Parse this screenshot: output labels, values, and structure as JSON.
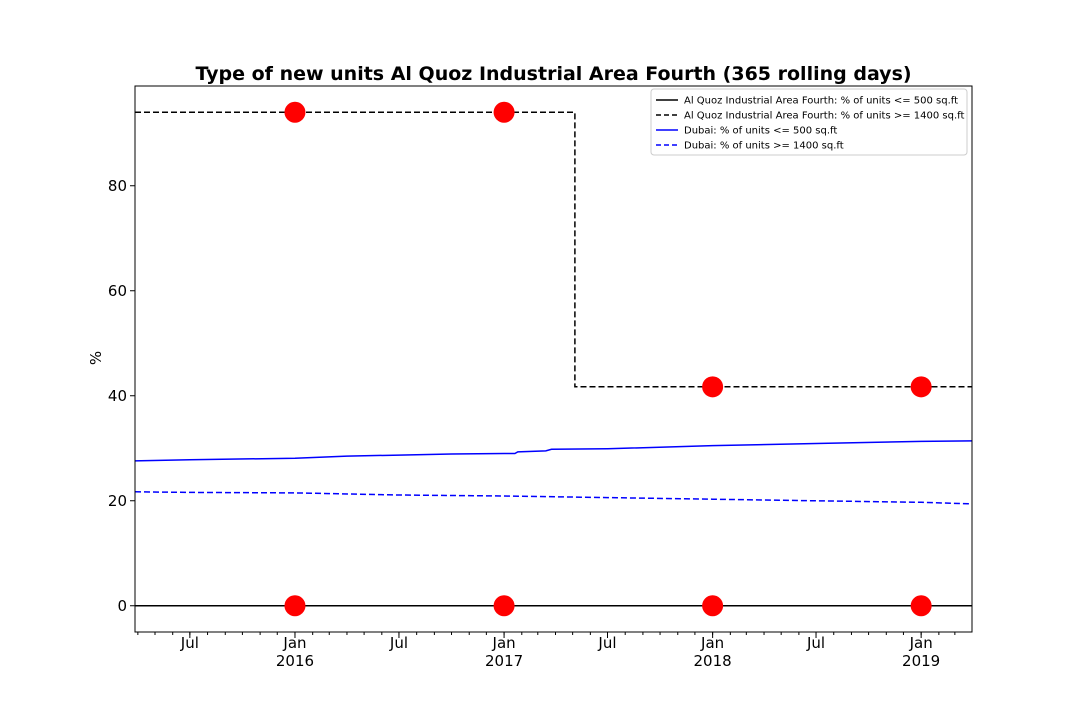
{
  "chart_data": {
    "type": "line",
    "title": "Type of new units Al Quoz Industrial Area Fourth (365 rolling days)",
    "xlabel": "",
    "ylabel": "%",
    "xlim": [
      "2015-03-27",
      "2019-03-31"
    ],
    "ylim": [
      -5,
      99
    ],
    "y_ticks": [
      0,
      20,
      40,
      60,
      80
    ],
    "x_ticks": [
      {
        "date": "2015-07-01",
        "label": "Jul",
        "sublabel": ""
      },
      {
        "date": "2016-01-01",
        "label": "Jan",
        "sublabel": "2016"
      },
      {
        "date": "2016-07-01",
        "label": "Jul",
        "sublabel": ""
      },
      {
        "date": "2017-01-01",
        "label": "Jan",
        "sublabel": "2017"
      },
      {
        "date": "2017-07-01",
        "label": "Jul",
        "sublabel": ""
      },
      {
        "date": "2018-01-01",
        "label": "Jan",
        "sublabel": "2018"
      },
      {
        "date": "2018-07-01",
        "label": "Jul",
        "sublabel": ""
      },
      {
        "date": "2019-01-01",
        "label": "Jan",
        "sublabel": "2019"
      }
    ],
    "grid": false,
    "legend_position": "top-right",
    "series": [
      {
        "name": "Al Quoz Industrial Area Fourth: % of units <= 500 sq.ft",
        "color": "#000000",
        "dash": "solid",
        "step": true,
        "points": [
          [
            "2015-03-27",
            0
          ],
          [
            "2019-03-31",
            0
          ]
        ]
      },
      {
        "name": "Al Quoz Industrial Area Fourth: % of units >= 1400 sq.ft",
        "color": "#000000",
        "dash": "dashed",
        "step": true,
        "points": [
          [
            "2015-03-27",
            94
          ],
          [
            "2017-05-05",
            94
          ],
          [
            "2017-05-05",
            41.7
          ],
          [
            "2019-03-31",
            41.7
          ]
        ]
      },
      {
        "name": "Dubai: % of units <= 500 sq.ft",
        "color": "#0000ff",
        "dash": "solid",
        "step": false,
        "points": [
          [
            "2015-03-27",
            27.6
          ],
          [
            "2015-07-01",
            27.8
          ],
          [
            "2016-01-01",
            28.1
          ],
          [
            "2016-04-01",
            28.5
          ],
          [
            "2016-07-01",
            28.7
          ],
          [
            "2016-10-01",
            28.9
          ],
          [
            "2017-01-01",
            29.0
          ],
          [
            "2017-01-20",
            29.0
          ],
          [
            "2017-01-25",
            29.3
          ],
          [
            "2017-03-15",
            29.5
          ],
          [
            "2017-03-25",
            29.8
          ],
          [
            "2017-07-01",
            29.9
          ],
          [
            "2018-01-01",
            30.5
          ],
          [
            "2018-07-01",
            30.9
          ],
          [
            "2019-01-01",
            31.3
          ],
          [
            "2019-03-31",
            31.4
          ]
        ]
      },
      {
        "name": "Dubai: % of units >= 1400 sq.ft",
        "color": "#0000ff",
        "dash": "dashed",
        "step": false,
        "points": [
          [
            "2015-03-27",
            21.7
          ],
          [
            "2015-07-01",
            21.6
          ],
          [
            "2016-01-01",
            21.5
          ],
          [
            "2016-07-01",
            21.1
          ],
          [
            "2017-01-01",
            20.9
          ],
          [
            "2017-03-01",
            20.8
          ],
          [
            "2017-07-01",
            20.6
          ],
          [
            "2018-01-01",
            20.3
          ],
          [
            "2018-07-01",
            20.0
          ],
          [
            "2019-01-01",
            19.7
          ],
          [
            "2019-03-31",
            19.4
          ]
        ]
      }
    ],
    "markers": {
      "color": "#ff0000",
      "points": [
        [
          "2016-01-01",
          94
        ],
        [
          "2017-01-01",
          94
        ],
        [
          "2018-01-01",
          41.7
        ],
        [
          "2019-01-01",
          41.7
        ],
        [
          "2016-01-01",
          0
        ],
        [
          "2017-01-01",
          0
        ],
        [
          "2018-01-01",
          0
        ],
        [
          "2019-01-01",
          0
        ]
      ]
    }
  }
}
